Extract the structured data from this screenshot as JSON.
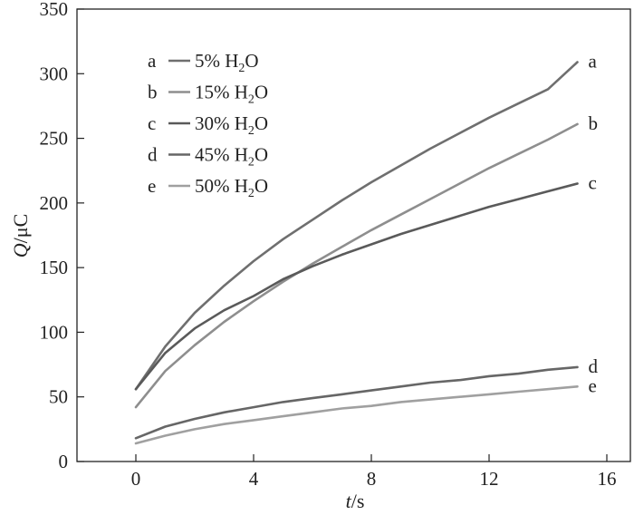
{
  "chart_data": {
    "type": "line",
    "xlabel": {
      "var": "t",
      "unit": "/s"
    },
    "ylabel": {
      "var": "Q",
      "unit": "/μC"
    },
    "xlim": [
      -2,
      16.8
    ],
    "ylim": [
      0,
      350
    ],
    "xticks": [
      0,
      4,
      8,
      12,
      16
    ],
    "yticks": [
      0,
      50,
      100,
      150,
      200,
      250,
      300,
      350
    ],
    "legend_position": "top-left",
    "x": [
      0,
      1,
      2,
      3,
      4,
      5,
      6,
      7,
      8,
      9,
      10,
      11,
      12,
      13,
      14,
      15
    ],
    "series": [
      {
        "key": "a",
        "pct": "5% H",
        "sub": "2",
        "tail": "O",
        "color": "#6f6f6f",
        "values": [
          56,
          89,
          115,
          136,
          155,
          172,
          187,
          202,
          216,
          229,
          242,
          254,
          266,
          277,
          288,
          309
        ]
      },
      {
        "key": "b",
        "pct": "15% H",
        "sub": "2",
        "tail": "O",
        "color": "#8e8e8e",
        "values": [
          42,
          70,
          90,
          108,
          124,
          139,
          153,
          166,
          179,
          191,
          203,
          215,
          227,
          238,
          249,
          261
        ]
      },
      {
        "key": "c",
        "pct": "30% H",
        "sub": "2",
        "tail": "O",
        "color": "#5a5a5a",
        "values": [
          56,
          84,
          103,
          117,
          128,
          141,
          151,
          160,
          168,
          176,
          183,
          190,
          197,
          203,
          209,
          215
        ]
      },
      {
        "key": "d",
        "pct": "45% H",
        "sub": "2",
        "tail": "O",
        "color": "#666666",
        "values": [
          18,
          27,
          33,
          38,
          42,
          46,
          49,
          52,
          55,
          58,
          61,
          63,
          66,
          68,
          71,
          73
        ]
      },
      {
        "key": "e",
        "pct": "50% H",
        "sub": "2",
        "tail": "O",
        "color": "#a0a0a0",
        "values": [
          14,
          20,
          25,
          29,
          32,
          35,
          38,
          41,
          43,
          46,
          48,
          50,
          52,
          54,
          56,
          58
        ]
      }
    ]
  }
}
